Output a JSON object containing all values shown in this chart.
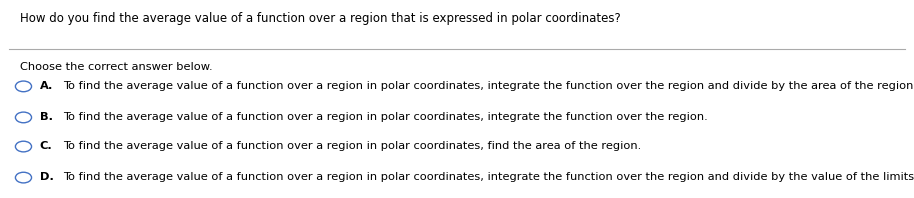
{
  "question": "How do you find the average value of a function over a region that is expressed in polar coordinates?",
  "instruction": "Choose the correct answer below.",
  "options": [
    {
      "label": "A.",
      "text": "To find the average value of a function over a region in polar coordinates, integrate the function over the region and divide by the area of the region."
    },
    {
      "label": "B.",
      "text": "To find the average value of a function over a region in polar coordinates, integrate the function over the region."
    },
    {
      "label": "C.",
      "text": "To find the average value of a function over a region in polar coordinates, find the area of the region."
    },
    {
      "label": "D.",
      "text": "To find the average value of a function over a region in polar coordinates, integrate the function over the region and divide by the value of the limits."
    }
  ],
  "bg_color": "#ffffff",
  "text_color": "#000000",
  "circle_color": "#4472c4",
  "line_color": "#aaaaaa",
  "question_fontsize": 8.5,
  "body_fontsize": 8.2,
  "fig_width": 9.14,
  "fig_height": 1.98,
  "dpi": 100
}
